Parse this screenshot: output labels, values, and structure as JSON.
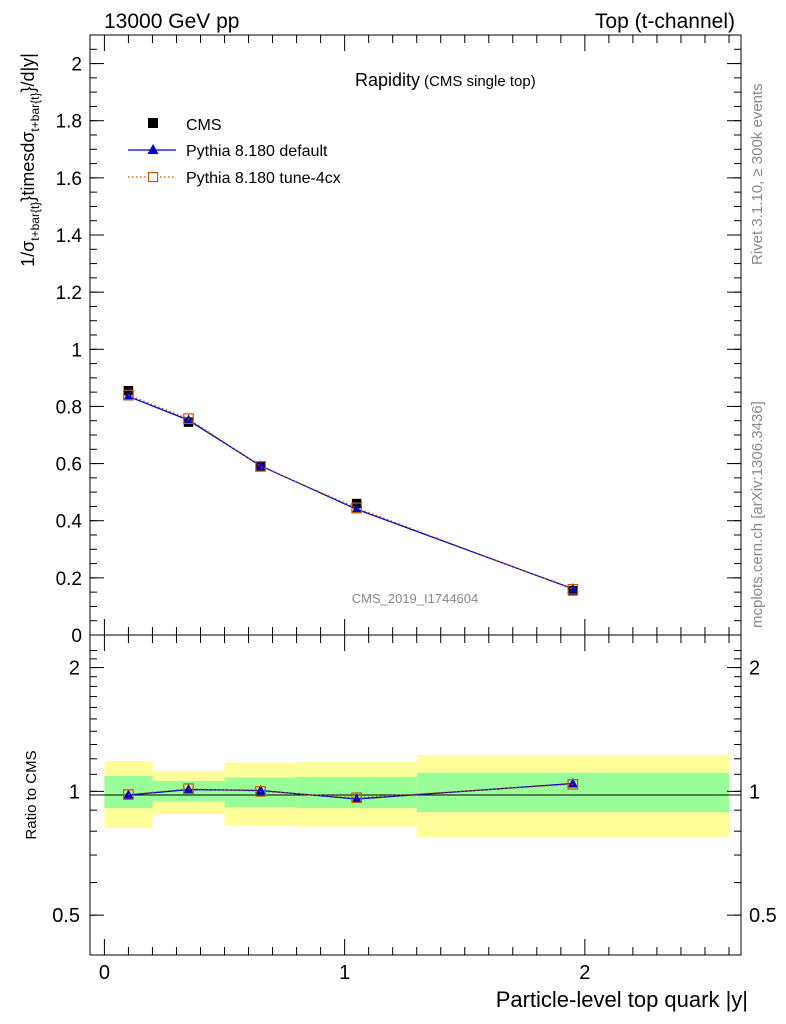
{
  "header": {
    "energy_label": "13000 GeV pp",
    "process_label": "Top (t-channel)"
  },
  "side_text": {
    "rivet": "Rivet 3.1.10, ≥ 300k events",
    "mcplots": "mcplots.cern.ch [arXiv:1306.3436]"
  },
  "chart_data": [
    {
      "type": "line",
      "title": "Rapidity",
      "subtitle": "(CMS single top)",
      "watermark": "CMS_2019_I1744604",
      "ylabel": "1/σ_{t+bar{t}}timesdσ_{t+bar{t}}/d|y|",
      "xlim": [
        -0.06,
        2.65
      ],
      "ylim": [
        0,
        2.1
      ],
      "yticks": [
        "0",
        "0.2",
        "0.4",
        "0.6",
        "0.8",
        "1",
        "1.2",
        "1.4",
        "1.6",
        "1.8",
        "2"
      ],
      "x": [
        0.1,
        0.35,
        0.65,
        1.05,
        1.95
      ],
      "bin_edges": [
        0,
        0.2,
        0.5,
        0.8,
        1.3,
        2.6
      ],
      "legend_position": "top-left",
      "series": [
        {
          "name": "CMS",
          "marker": "square",
          "color": "#000000",
          "values": [
            0.855,
            0.745,
            0.59,
            0.46,
            0.155
          ]
        },
        {
          "name": "Pythia 8.180 default",
          "marker": "triangle",
          "color": "#0000cc",
          "values": [
            0.835,
            0.752,
            0.592,
            0.44,
            0.162
          ]
        },
        {
          "name": "Pythia 8.180 tune-4cx",
          "marker": "open-square",
          "color": "#cc5500",
          "values": [
            0.84,
            0.757,
            0.59,
            0.445,
            0.16
          ]
        }
      ]
    },
    {
      "type": "line",
      "ylabel": "Ratio to CMS",
      "xlabel": "Particle-level top quark |y|",
      "xlim": [
        -0.06,
        2.65
      ],
      "ylim": [
        0.4,
        2.4
      ],
      "y_scale": "log",
      "yticks": [
        "0.5",
        "1",
        "2"
      ],
      "xticks": [
        "0",
        "1",
        "2"
      ],
      "bin_edges": [
        0,
        0.2,
        0.5,
        0.8,
        1.3,
        2.6
      ],
      "band_inner": {
        "color": "#99ff99",
        "lo": [
          0.91,
          0.945,
          0.915,
          0.91,
          0.89
        ],
        "hi": [
          1.09,
          1.06,
          1.08,
          1.085,
          1.11
        ]
      },
      "band_outer": {
        "color": "#ffff99",
        "lo": [
          0.815,
          0.88,
          0.825,
          0.82,
          0.775
        ],
        "hi": [
          1.185,
          1.12,
          1.175,
          1.18,
          1.225
        ]
      },
      "x": [
        0.1,
        0.35,
        0.65,
        1.05,
        1.95
      ],
      "series": [
        {
          "name": "Pythia 8.180 default",
          "marker": "triangle",
          "color": "#0000cc",
          "values": [
            0.98,
            1.01,
            1.005,
            0.958,
            1.045
          ]
        },
        {
          "name": "Pythia 8.180 tune-4cx",
          "marker": "open-square",
          "color": "#cc5500",
          "values": [
            0.982,
            1.015,
            1.0,
            0.965,
            1.04
          ]
        }
      ]
    }
  ]
}
